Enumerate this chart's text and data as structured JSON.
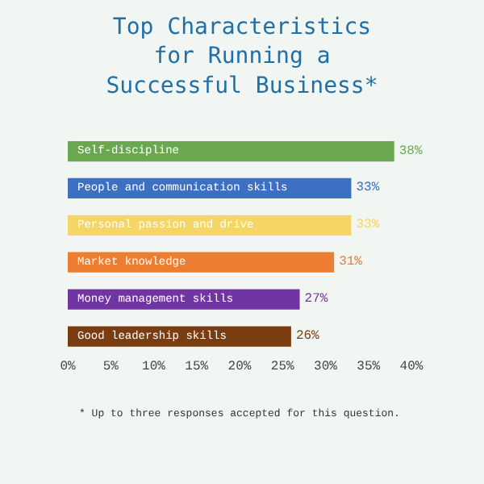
{
  "chart_data": {
    "type": "bar",
    "orientation": "horizontal",
    "title": "Top Characteristics\nfor Running a\nSuccessful Business*",
    "categories": [
      "Self-discipline",
      "People and communication skills",
      "Personal passion and drive",
      "Market knowledge",
      "Money management skills",
      "Good leadership skills"
    ],
    "values": [
      38,
      33,
      33,
      31,
      27,
      26
    ],
    "colors": [
      "#6aa84f",
      "#3d6fc2",
      "#f5d565",
      "#ec7d31",
      "#7134a3",
      "#7a3d12"
    ],
    "value_labels": [
      "38%",
      "33%",
      "33%",
      "31%",
      "27%",
      "26%"
    ],
    "xlim": [
      0,
      40
    ],
    "xticks": [
      {
        "value": 0,
        "label": "0%"
      },
      {
        "value": 5,
        "label": "5%"
      },
      {
        "value": 10,
        "label": "10%"
      },
      {
        "value": 15,
        "label": "15%"
      },
      {
        "value": 20,
        "label": "20%"
      },
      {
        "value": 25,
        "label": "25%"
      },
      {
        "value": 30,
        "label": "30%"
      },
      {
        "value": 35,
        "label": "35%"
      },
      {
        "value": 40,
        "label": "40%"
      }
    ],
    "tick_labels": "x",
    "grid": false,
    "legend": false,
    "annotations": [
      "* Up to three responses accepted for this question."
    ]
  }
}
